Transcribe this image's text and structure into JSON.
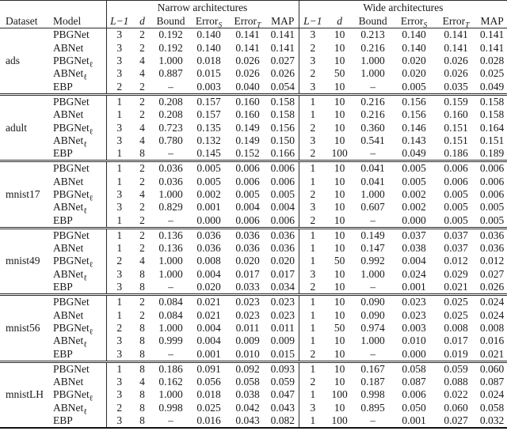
{
  "colors": {
    "background": "#ffffff",
    "text": "#1a1a1a",
    "rule": "#2b2b2b"
  },
  "table": {
    "groups": [
      {
        "label": "Narrow architectures"
      },
      {
        "label": "Wide architectures"
      }
    ],
    "left_columns": [
      {
        "label": "Dataset"
      },
      {
        "label": "Model"
      }
    ],
    "metric_columns": [
      {
        "label": "L−1",
        "math": true
      },
      {
        "label": "d",
        "math": true
      },
      {
        "label": "Bound",
        "math": false
      },
      {
        "label": "Error",
        "sub": "S"
      },
      {
        "label": "Error",
        "sub": "T"
      },
      {
        "label": "MAP",
        "math": false
      }
    ],
    "missing_value": "–",
    "datasets": [
      {
        "name": "ads",
        "rows": [
          {
            "model": "PBGNet",
            "model_sub": "",
            "narrow": [
              "3",
              "2",
              "0.192",
              "0.140",
              "0.141",
              "0.141"
            ],
            "wide": [
              "3",
              "10",
              "0.213",
              "0.140",
              "0.141",
              "0.141"
            ]
          },
          {
            "model": "ABNet",
            "model_sub": "",
            "narrow": [
              "3",
              "2",
              "0.192",
              "0.140",
              "0.141",
              "0.141"
            ],
            "wide": [
              "2",
              "10",
              "0.216",
              "0.140",
              "0.141",
              "0.141"
            ]
          },
          {
            "model": "PBGNet",
            "model_sub": "ℓ",
            "narrow": [
              "3",
              "4",
              "1.000",
              "0.018",
              "0.026",
              "0.027"
            ],
            "wide": [
              "3",
              "10",
              "1.000",
              "0.020",
              "0.026",
              "0.028"
            ]
          },
          {
            "model": "ABNet",
            "model_sub": "ℓ",
            "narrow": [
              "3",
              "4",
              "0.887",
              "0.015",
              "0.026",
              "0.026"
            ],
            "wide": [
              "2",
              "50",
              "1.000",
              "0.020",
              "0.026",
              "0.025"
            ]
          },
          {
            "model": "EBP",
            "model_sub": "",
            "narrow": [
              "2",
              "2",
              "–",
              "0.003",
              "0.040",
              "0.054"
            ],
            "wide": [
              "3",
              "10",
              "–",
              "0.005",
              "0.035",
              "0.049"
            ]
          }
        ]
      },
      {
        "name": "adult",
        "rows": [
          {
            "model": "PBGNet",
            "model_sub": "",
            "narrow": [
              "1",
              "2",
              "0.208",
              "0.157",
              "0.160",
              "0.158"
            ],
            "wide": [
              "1",
              "10",
              "0.216",
              "0.156",
              "0.159",
              "0.158"
            ]
          },
          {
            "model": "ABNet",
            "model_sub": "",
            "narrow": [
              "1",
              "2",
              "0.208",
              "0.157",
              "0.160",
              "0.158"
            ],
            "wide": [
              "1",
              "10",
              "0.216",
              "0.156",
              "0.160",
              "0.158"
            ]
          },
          {
            "model": "PBGNet",
            "model_sub": "ℓ",
            "narrow": [
              "3",
              "4",
              "0.723",
              "0.135",
              "0.149",
              "0.156"
            ],
            "wide": [
              "2",
              "10",
              "0.360",
              "0.146",
              "0.151",
              "0.164"
            ]
          },
          {
            "model": "ABNet",
            "model_sub": "ℓ",
            "narrow": [
              "3",
              "4",
              "0.780",
              "0.132",
              "0.149",
              "0.150"
            ],
            "wide": [
              "3",
              "10",
              "0.541",
              "0.143",
              "0.151",
              "0.151"
            ]
          },
          {
            "model": "EBP",
            "model_sub": "",
            "narrow": [
              "1",
              "8",
              "–",
              "0.145",
              "0.152",
              "0.166"
            ],
            "wide": [
              "2",
              "100",
              "–",
              "0.049",
              "0.186",
              "0.189"
            ]
          }
        ]
      },
      {
        "name": "mnist17",
        "rows": [
          {
            "model": "PBGNet",
            "model_sub": "",
            "narrow": [
              "1",
              "2",
              "0.036",
              "0.005",
              "0.006",
              "0.006"
            ],
            "wide": [
              "1",
              "10",
              "0.041",
              "0.005",
              "0.006",
              "0.006"
            ]
          },
          {
            "model": "ABNet",
            "model_sub": "",
            "narrow": [
              "1",
              "2",
              "0.036",
              "0.005",
              "0.006",
              "0.006"
            ],
            "wide": [
              "1",
              "10",
              "0.041",
              "0.005",
              "0.006",
              "0.006"
            ]
          },
          {
            "model": "PBGNet",
            "model_sub": "ℓ",
            "narrow": [
              "3",
              "4",
              "1.000",
              "0.002",
              "0.005",
              "0.005"
            ],
            "wide": [
              "2",
              "10",
              "1.000",
              "0.002",
              "0.005",
              "0.006"
            ]
          },
          {
            "model": "ABNet",
            "model_sub": "ℓ",
            "narrow": [
              "3",
              "2",
              "0.829",
              "0.001",
              "0.004",
              "0.004"
            ],
            "wide": [
              "3",
              "10",
              "0.607",
              "0.002",
              "0.005",
              "0.005"
            ]
          },
          {
            "model": "EBP",
            "model_sub": "",
            "narrow": [
              "1",
              "2",
              "–",
              "0.000",
              "0.006",
              "0.006"
            ],
            "wide": [
              "2",
              "10",
              "–",
              "0.000",
              "0.005",
              "0.005"
            ]
          }
        ]
      },
      {
        "name": "mnist49",
        "rows": [
          {
            "model": "PBGNet",
            "model_sub": "",
            "narrow": [
              "1",
              "2",
              "0.136",
              "0.036",
              "0.036",
              "0.036"
            ],
            "wide": [
              "1",
              "10",
              "0.149",
              "0.037",
              "0.037",
              "0.036"
            ]
          },
          {
            "model": "ABNet",
            "model_sub": "",
            "narrow": [
              "1",
              "2",
              "0.136",
              "0.036",
              "0.036",
              "0.036"
            ],
            "wide": [
              "1",
              "10",
              "0.147",
              "0.038",
              "0.037",
              "0.036"
            ]
          },
          {
            "model": "PBGNet",
            "model_sub": "ℓ",
            "narrow": [
              "2",
              "4",
              "1.000",
              "0.008",
              "0.020",
              "0.020"
            ],
            "wide": [
              "1",
              "50",
              "0.992",
              "0.004",
              "0.012",
              "0.012"
            ]
          },
          {
            "model": "ABNet",
            "model_sub": "ℓ",
            "narrow": [
              "3",
              "8",
              "1.000",
              "0.004",
              "0.017",
              "0.017"
            ],
            "wide": [
              "3",
              "10",
              "1.000",
              "0.024",
              "0.029",
              "0.027"
            ]
          },
          {
            "model": "EBP",
            "model_sub": "",
            "narrow": [
              "3",
              "8",
              "–",
              "0.020",
              "0.033",
              "0.034"
            ],
            "wide": [
              "2",
              "10",
              "–",
              "0.001",
              "0.021",
              "0.026"
            ]
          }
        ]
      },
      {
        "name": "mnist56",
        "rows": [
          {
            "model": "PBGNet",
            "model_sub": "",
            "narrow": [
              "1",
              "2",
              "0.084",
              "0.021",
              "0.023",
              "0.023"
            ],
            "wide": [
              "1",
              "10",
              "0.090",
              "0.023",
              "0.025",
              "0.024"
            ]
          },
          {
            "model": "ABNet",
            "model_sub": "",
            "narrow": [
              "1",
              "2",
              "0.084",
              "0.021",
              "0.023",
              "0.023"
            ],
            "wide": [
              "1",
              "10",
              "0.090",
              "0.023",
              "0.025",
              "0.024"
            ]
          },
          {
            "model": "PBGNet",
            "model_sub": "ℓ",
            "narrow": [
              "2",
              "8",
              "1.000",
              "0.004",
              "0.011",
              "0.011"
            ],
            "wide": [
              "1",
              "50",
              "0.974",
              "0.003",
              "0.008",
              "0.008"
            ]
          },
          {
            "model": "ABNet",
            "model_sub": "ℓ",
            "narrow": [
              "3",
              "8",
              "0.999",
              "0.004",
              "0.009",
              "0.009"
            ],
            "wide": [
              "1",
              "10",
              "1.000",
              "0.010",
              "0.017",
              "0.016"
            ]
          },
          {
            "model": "EBP",
            "model_sub": "",
            "narrow": [
              "3",
              "8",
              "–",
              "0.001",
              "0.010",
              "0.015"
            ],
            "wide": [
              "2",
              "10",
              "–",
              "0.000",
              "0.019",
              "0.021"
            ]
          }
        ]
      },
      {
        "name": "mnistLH",
        "rows": [
          {
            "model": "PBGNet",
            "model_sub": "",
            "narrow": [
              "1",
              "8",
              "0.186",
              "0.091",
              "0.092",
              "0.093"
            ],
            "wide": [
              "1",
              "10",
              "0.167",
              "0.058",
              "0.059",
              "0.060"
            ]
          },
          {
            "model": "ABNet",
            "model_sub": "",
            "narrow": [
              "3",
              "4",
              "0.162",
              "0.056",
              "0.058",
              "0.059"
            ],
            "wide": [
              "2",
              "10",
              "0.187",
              "0.087",
              "0.088",
              "0.087"
            ]
          },
          {
            "model": "PBGNet",
            "model_sub": "ℓ",
            "narrow": [
              "3",
              "8",
              "1.000",
              "0.018",
              "0.038",
              "0.047"
            ],
            "wide": [
              "1",
              "100",
              "0.998",
              "0.006",
              "0.022",
              "0.024"
            ]
          },
          {
            "model": "ABNet",
            "model_sub": "ℓ",
            "narrow": [
              "2",
              "8",
              "0.998",
              "0.025",
              "0.042",
              "0.043"
            ],
            "wide": [
              "3",
              "10",
              "0.895",
              "0.050",
              "0.060",
              "0.058"
            ]
          },
          {
            "model": "EBP",
            "model_sub": "",
            "narrow": [
              "3",
              "8",
              "–",
              "0.016",
              "0.043",
              "0.082"
            ],
            "wide": [
              "1",
              "100",
              "–",
              "0.001",
              "0.027",
              "0.032"
            ]
          }
        ]
      }
    ]
  }
}
